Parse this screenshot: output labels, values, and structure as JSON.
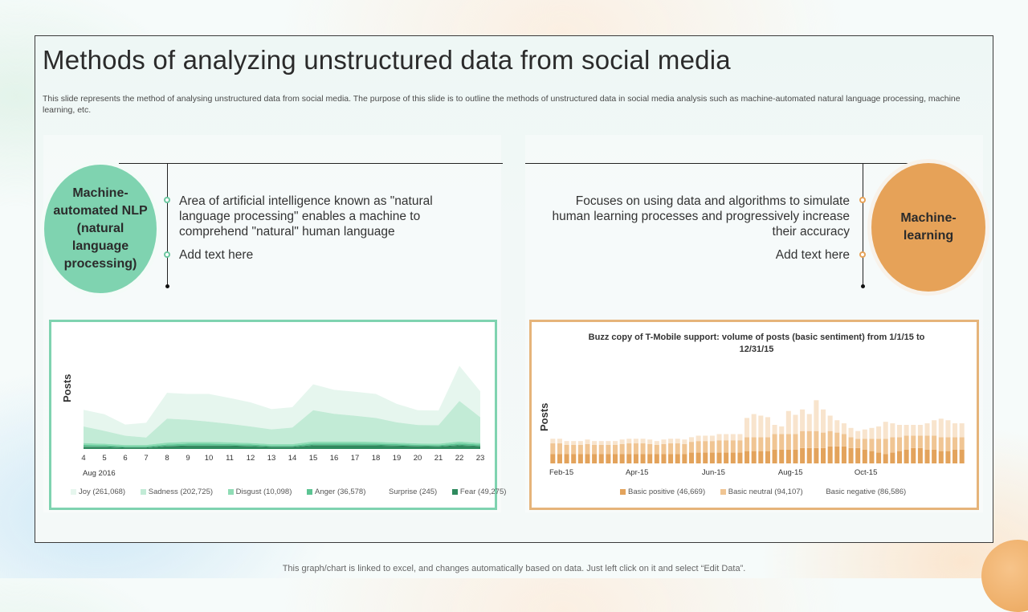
{
  "title": "Methods of analyzing unstructured data from social media",
  "description": "This slide represents the method of analysing unstructured data from social media. The purpose of this slide is to outline the methods of unstructured data in social media analysis such as machine-automated natural language processing, machine learning, etc.",
  "left": {
    "circle_label": "Machine-automated NLP (natural language processing)",
    "point1": "Area of artificial intelligence known as \"natural language processing\" enables a machine to comprehend \"natural\" human language",
    "point2": "Add text here",
    "accent": "#7fd3b0"
  },
  "right": {
    "circle_label": "Machine-learning",
    "point1": "Focuses on using data and algorithms to simulate human learning processes and progressively increase their accuracy",
    "point2": "Add text here",
    "accent": "#e6a258"
  },
  "footer": "This graph/chart is linked to excel, and changes automatically based on data. Just left click on it and select “Edit Data”.",
  "chart_data": [
    {
      "type": "area",
      "title": "",
      "ylabel": "Posts",
      "xlabel": "Aug 2016",
      "x": [
        "4",
        "5",
        "6",
        "7",
        "8",
        "9",
        "10",
        "11",
        "12",
        "13",
        "14",
        "15",
        "16",
        "17",
        "18",
        "19",
        "20",
        "21",
        "22",
        "23"
      ],
      "stacked": true,
      "ylim": [
        0,
        300
      ],
      "series": [
        {
          "name": "Fear (49,275)",
          "color": "#2f8a5e",
          "values": [
            5,
            5,
            3,
            3,
            7,
            8,
            8,
            8,
            7,
            5,
            5,
            9,
            9,
            9,
            9,
            8,
            7,
            6,
            9,
            7
          ]
        },
        {
          "name": "Surprise (245)",
          "color": "#1f6e48",
          "values": [
            1,
            1,
            1,
            1,
            1,
            1,
            1,
            1,
            1,
            1,
            1,
            1,
            1,
            1,
            1,
            1,
            1,
            1,
            1,
            1
          ]
        },
        {
          "name": "Anger (36,578)",
          "color": "#5cc493",
          "values": [
            5,
            4,
            3,
            3,
            4,
            5,
            5,
            4,
            4,
            3,
            3,
            5,
            5,
            5,
            4,
            4,
            3,
            3,
            5,
            4
          ]
        },
        {
          "name": "Disgust (10,098)",
          "color": "#8fdcb5",
          "values": [
            5,
            4,
            4,
            4,
            5,
            5,
            5,
            5,
            4,
            4,
            4,
            5,
            5,
            5,
            5,
            4,
            4,
            4,
            5,
            4
          ]
        },
        {
          "name": "Sadness (202,725)",
          "color": "#c2ebd6",
          "values": [
            45,
            35,
            25,
            20,
            65,
            60,
            55,
            50,
            45,
            40,
            45,
            85,
            75,
            70,
            65,
            55,
            50,
            50,
            110,
            70
          ]
        },
        {
          "name": "Joy (261,068)",
          "color": "#e6f6ee",
          "values": [
            45,
            45,
            30,
            40,
            70,
            70,
            75,
            70,
            65,
            55,
            55,
            70,
            65,
            65,
            65,
            50,
            40,
            40,
            95,
            70
          ]
        }
      ]
    },
    {
      "type": "bar",
      "title": "Buzz copy of T-Mobile support: volume of posts (basic sentiment) from 1/1/15 to 12/31/15",
      "ylabel": "Posts",
      "x_tick_labels": [
        "Feb-15",
        "Apr-15",
        "Jun-15",
        "Aug-15",
        "Oct-15"
      ],
      "stacked": true,
      "ylim": [
        0,
        100
      ],
      "series": [
        {
          "name": "Basic positive (46,669)",
          "color": "#e3a35c",
          "values": [
            12,
            12,
            12,
            12,
            12,
            12,
            12,
            12,
            12,
            12,
            12,
            12,
            12,
            12,
            12,
            12,
            12,
            12,
            12,
            12,
            14,
            14,
            14,
            14,
            14,
            14,
            14,
            14,
            16,
            16,
            16,
            16,
            18,
            18,
            18,
            18,
            20,
            20,
            20,
            20,
            22,
            22,
            22,
            20,
            20,
            18,
            16,
            14,
            12,
            14,
            16,
            18,
            20,
            20,
            18,
            18,
            16,
            16,
            18,
            18
          ]
        },
        {
          "name": "Basic neutral (94,107)",
          "color": "#f0c593",
          "values": [
            14,
            14,
            12,
            12,
            12,
            13,
            12,
            12,
            12,
            12,
            13,
            14,
            14,
            14,
            13,
            12,
            13,
            14,
            14,
            13,
            14,
            15,
            15,
            15,
            16,
            16,
            16,
            16,
            18,
            18,
            18,
            18,
            20,
            20,
            20,
            20,
            22,
            22,
            22,
            20,
            20,
            18,
            16,
            14,
            12,
            14,
            16,
            18,
            20,
            20,
            18,
            18,
            16,
            16,
            18,
            18,
            18,
            18,
            16,
            16
          ]
        },
        {
          "name": "Basic negative (86,586)",
          "color": "#f8e4cd",
          "values": [
            6,
            6,
            5,
            5,
            5,
            6,
            5,
            5,
            5,
            5,
            6,
            6,
            6,
            6,
            6,
            5,
            6,
            6,
            6,
            6,
            6,
            7,
            7,
            7,
            8,
            8,
            8,
            8,
            25,
            30,
            28,
            26,
            12,
            10,
            30,
            25,
            28,
            22,
            40,
            30,
            20,
            16,
            14,
            12,
            10,
            12,
            14,
            16,
            22,
            18,
            16,
            14,
            14,
            14,
            16,
            20,
            24,
            22,
            18,
            18
          ]
        }
      ]
    }
  ]
}
